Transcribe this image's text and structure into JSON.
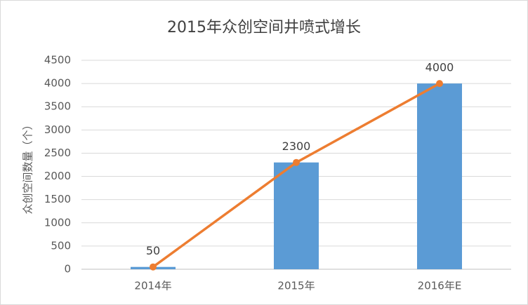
{
  "chart_data": {
    "type": "combo",
    "title": "2015年众创空间井喷式增长",
    "y_label": "众创空间数量（个）",
    "categories": [
      "2014年",
      "2015年",
      "2016年E"
    ],
    "series": [
      {
        "type": "bar",
        "color": "#5b9bd5",
        "values": [
          50,
          2300,
          4000
        ]
      },
      {
        "type": "line",
        "color": "#ed7d31",
        "values": [
          50,
          2300,
          4000
        ]
      }
    ],
    "ylim": [
      0,
      4500
    ],
    "yticks": [
      0,
      500,
      1000,
      1500,
      2000,
      2500,
      3000,
      3500,
      4000,
      4500
    ],
    "grid": true,
    "data_labels": true
  }
}
